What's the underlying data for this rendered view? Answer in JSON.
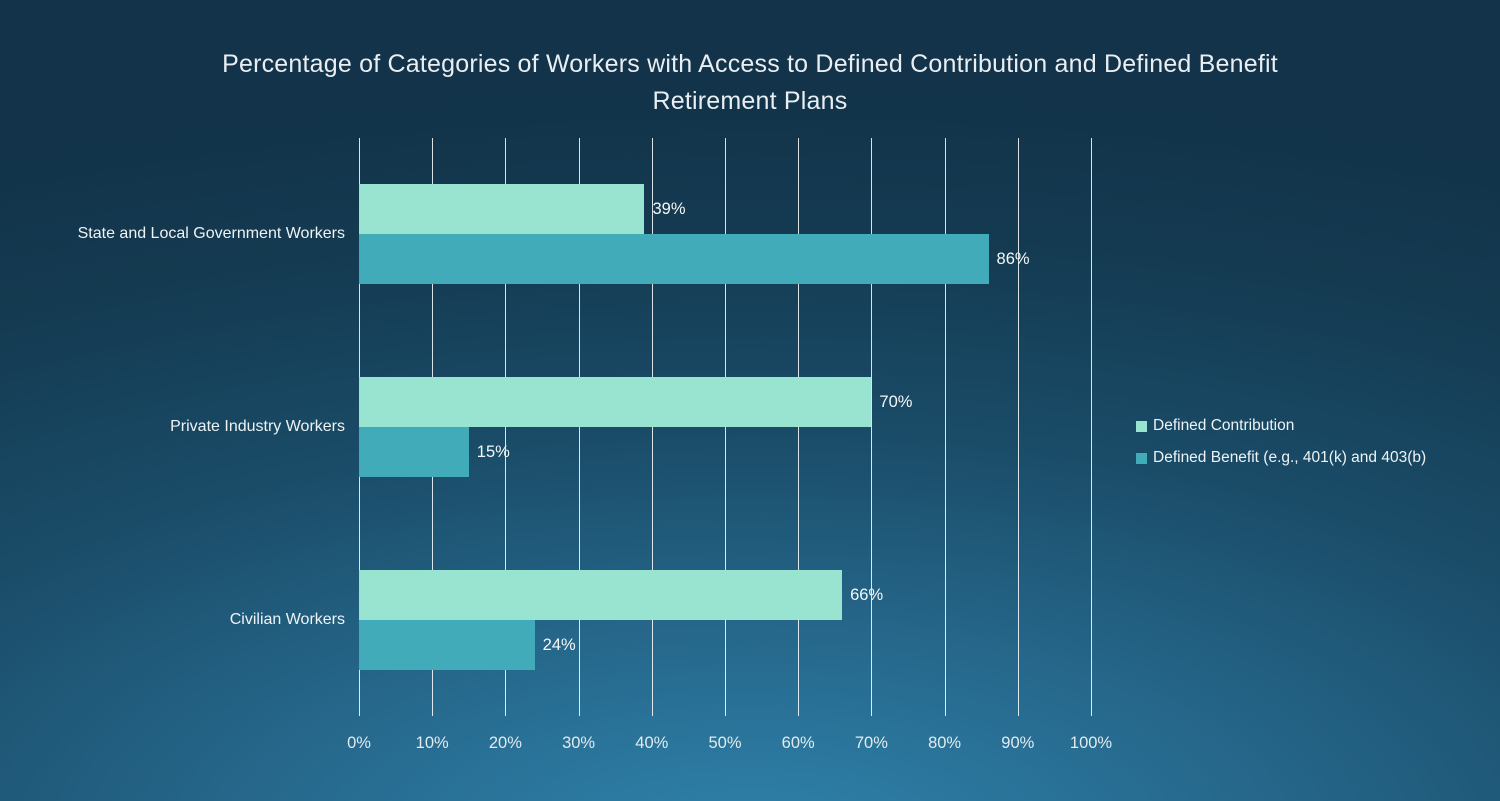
{
  "chart_data": {
    "type": "bar",
    "orientation": "horizontal",
    "title": "Percentage of Categories of Workers with Access to Defined Contribution and Defined Benefit Retirement Plans",
    "categories": [
      "State and Local Government Workers",
      "Private Industry Workers",
      "Civilian Workers"
    ],
    "series": [
      {
        "name": "Defined Contribution",
        "color": "#99e4d1",
        "values": [
          39,
          70,
          66
        ]
      },
      {
        "name": "Defined Benefit (e.g., 401(k) and 403(b)",
        "color": "#41abb9",
        "values": [
          86,
          15,
          24
        ]
      }
    ],
    "data_labels": [
      [
        "39%",
        "70%",
        "66%"
      ],
      [
        "86%",
        "15%",
        "24%"
      ]
    ],
    "xlabel": "",
    "ylabel": "",
    "x_axis": {
      "min": 0,
      "max": 100,
      "step": 10,
      "tick_labels": [
        "0%",
        "10%",
        "20%",
        "30%",
        "40%",
        "50%",
        "60%",
        "70%",
        "80%",
        "90%",
        "100%"
      ]
    },
    "grid": true,
    "legend_position": "right",
    "colors": {
      "background_edge": "#133a50",
      "background_glow": "#2f83ad",
      "gridline": "#ffffff",
      "text": "#e9eef2"
    }
  }
}
